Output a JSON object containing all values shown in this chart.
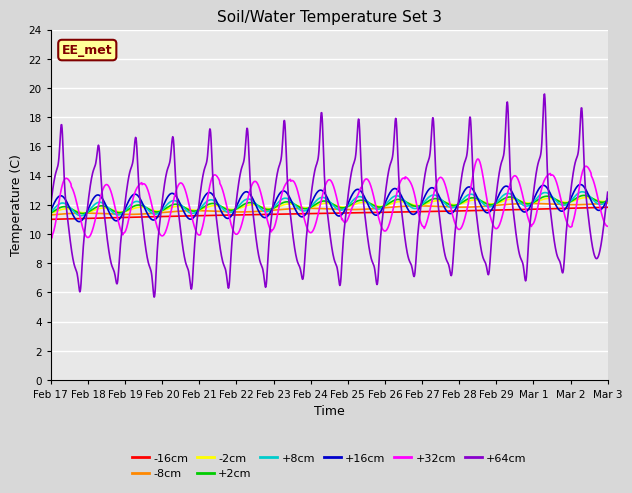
{
  "title": "Soil/Water Temperature Set 3",
  "xlabel": "Time",
  "ylabel": "Temperature (C)",
  "ylim": [
    0,
    24
  ],
  "yticks": [
    0,
    2,
    4,
    6,
    8,
    10,
    12,
    14,
    16,
    18,
    20,
    22,
    24
  ],
  "fig_bg_color": "#d8d8d8",
  "plot_bg": "#e8e8e8",
  "annotation_text": "EE_met",
  "annotation_bg": "#ffff99",
  "annotation_border": "#800000",
  "series_colors": {
    "-16cm": "#ff0000",
    "-8cm": "#ff8800",
    "-2cm": "#ffff00",
    "+2cm": "#00cc00",
    "+8cm": "#00cccc",
    "+16cm": "#0000cc",
    "+32cm": "#ff00ff",
    "+64cm": "#8800cc"
  },
  "series_order": [
    "-16cm",
    "-8cm",
    "-2cm",
    "+2cm",
    "+8cm",
    "+16cm",
    "+32cm",
    "+64cm"
  ],
  "date_labels": [
    "Feb 17",
    "Feb 18",
    "Feb 19",
    "Feb 20",
    "Feb 21",
    "Feb 22",
    "Feb 23",
    "Feb 24",
    "Feb 25",
    "Feb 26",
    "Feb 27",
    "Feb 28",
    "Feb 29",
    "Mar 1",
    "Mar 2",
    "Mar 3"
  ]
}
